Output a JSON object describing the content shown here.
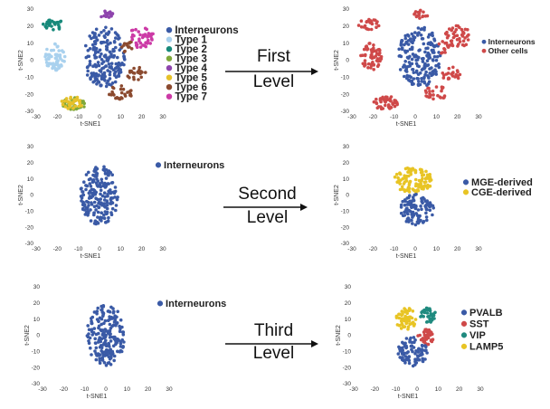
{
  "colors": {
    "interneurons": "#3a5aa6",
    "type1": "#a9d1ee",
    "type2": "#17897a",
    "type3": "#7fa83a",
    "type4": "#8e44ad",
    "type5": "#e6c12a",
    "type6": "#8b4a2f",
    "type7": "#cc3aa6",
    "other": "#cf4949",
    "mge": "#3a5aa6",
    "cge": "#e8c424",
    "pvalb": "#3a5aa6",
    "sst": "#cf4949",
    "vip": "#1f8a7f",
    "lamp5": "#e8c424"
  },
  "arrows": [
    {
      "line1": "First",
      "line2": "Level"
    },
    {
      "line1": "Second",
      "line2": "Level"
    },
    {
      "line1": "Third",
      "line2": "Level"
    }
  ],
  "chart_data": [
    {
      "type": "scatter",
      "xlabel": "t-SNE1",
      "ylabel": "t-SNE2",
      "xticks": [
        -30,
        -20,
        -10,
        0,
        10,
        20,
        30
      ],
      "yticks": [
        -30,
        -20,
        -10,
        0,
        10,
        20,
        30
      ],
      "legend": [
        {
          "label": "Interneurons",
          "color_key": "interneurons"
        },
        {
          "label": "Type 1",
          "color_key": "type1"
        },
        {
          "label": "Type 2",
          "color_key": "type2"
        },
        {
          "label": "Type 3",
          "color_key": "type3"
        },
        {
          "label": "Type 4",
          "color_key": "type4"
        },
        {
          "label": "Type 5",
          "color_key": "type5"
        },
        {
          "label": "Type 6",
          "color_key": "type6"
        },
        {
          "label": "Type 7",
          "color_key": "type7"
        }
      ],
      "clusters": [
        {
          "color_key": "interneurons",
          "cx": 2,
          "cy": 2,
          "rx": 10,
          "ry": 18,
          "n": 190
        },
        {
          "color_key": "type1",
          "cx": -21,
          "cy": 2,
          "rx": 5,
          "ry": 8,
          "n": 60
        },
        {
          "color_key": "type2",
          "cx": -22,
          "cy": 21,
          "rx": 5,
          "ry": 3.5,
          "n": 26
        },
        {
          "color_key": "type3",
          "cx": -12,
          "cy": -25,
          "rx": 6,
          "ry": 4,
          "n": 34
        },
        {
          "color_key": "type4",
          "cx": 3,
          "cy": 27,
          "rx": 3.5,
          "ry": 2.5,
          "n": 16
        },
        {
          "color_key": "type5",
          "cx": -13,
          "cy": -25,
          "rx": 5,
          "ry": 4,
          "n": 30
        },
        {
          "color_key": "type6",
          "cx": 10,
          "cy": -19,
          "rx": 6,
          "ry": 4,
          "n": 26
        },
        {
          "color_key": "type6",
          "cx": 17,
          "cy": -8,
          "rx": 5,
          "ry": 4,
          "n": 22
        },
        {
          "color_key": "type6",
          "cx": 13,
          "cy": 8,
          "rx": 3,
          "ry": 4,
          "n": 14
        },
        {
          "color_key": "type7",
          "cx": 20,
          "cy": 14,
          "rx": 6,
          "ry": 7,
          "n": 44
        }
      ]
    },
    {
      "type": "scatter",
      "xlabel": "t-SNE1",
      "ylabel": "t-SNE2",
      "xticks": [
        -30,
        -20,
        -10,
        0,
        10,
        20,
        30
      ],
      "yticks": [
        -30,
        -20,
        -10,
        0,
        10,
        20,
        30
      ],
      "legend": [
        {
          "label": "Interneurons",
          "color_key": "interneurons"
        },
        {
          "label": "Other cells",
          "color_key": "other"
        }
      ],
      "clusters": [
        {
          "color_key": "interneurons",
          "cx": 2,
          "cy": 2,
          "rx": 10,
          "ry": 18,
          "n": 190
        },
        {
          "color_key": "other",
          "cx": -21,
          "cy": 2,
          "rx": 5,
          "ry": 8,
          "n": 60
        },
        {
          "color_key": "other",
          "cx": -22,
          "cy": 21,
          "rx": 5,
          "ry": 3.5,
          "n": 26
        },
        {
          "color_key": "other",
          "cx": -14,
          "cy": -25,
          "rx": 6,
          "ry": 4,
          "n": 50
        },
        {
          "color_key": "other",
          "cx": 3,
          "cy": 27,
          "rx": 3.5,
          "ry": 2.5,
          "n": 16
        },
        {
          "color_key": "other",
          "cx": 10,
          "cy": -19,
          "rx": 6,
          "ry": 4,
          "n": 26
        },
        {
          "color_key": "other",
          "cx": 17,
          "cy": -8,
          "rx": 5,
          "ry": 4,
          "n": 22
        },
        {
          "color_key": "other",
          "cx": 13,
          "cy": 8,
          "rx": 3,
          "ry": 4,
          "n": 14
        },
        {
          "color_key": "other",
          "cx": 20,
          "cy": 14,
          "rx": 6,
          "ry": 7,
          "n": 44
        }
      ]
    },
    {
      "type": "scatter",
      "xlabel": "t-SNE1",
      "ylabel": "t-SNE2",
      "xticks": [
        -30,
        -20,
        -10,
        0,
        10,
        20,
        30
      ],
      "yticks": [
        -30,
        -20,
        -10,
        0,
        10,
        20,
        30
      ],
      "legend": [
        {
          "label": "Interneurons",
          "color_key": "interneurons"
        }
      ],
      "clusters": [
        {
          "color_key": "interneurons",
          "cx": 0,
          "cy": 0,
          "rx": 9,
          "ry": 19,
          "n": 200
        }
      ]
    },
    {
      "type": "scatter",
      "xlabel": "t-SNE1",
      "ylabel": "t-SNE2",
      "xticks": [
        -30,
        -20,
        -10,
        0,
        10,
        20,
        30
      ],
      "yticks": [
        -30,
        -20,
        -10,
        0,
        10,
        20,
        30
      ],
      "legend": [
        {
          "label": "MGE-derived",
          "color_key": "mge"
        },
        {
          "label": "CGE-derived",
          "color_key": "cge"
        }
      ],
      "clusters": [
        {
          "color_key": "cge",
          "cx": -1,
          "cy": 9,
          "rx": 9,
          "ry": 8,
          "n": 100
        },
        {
          "color_key": "mge",
          "cx": 1,
          "cy": -9,
          "rx": 8,
          "ry": 10,
          "n": 100
        }
      ]
    },
    {
      "type": "scatter",
      "xlabel": "t-SNE1",
      "ylabel": "t-SNE2",
      "xticks": [
        -30,
        -20,
        -10,
        0,
        10,
        20,
        30
      ],
      "yticks": [
        -30,
        -20,
        -10,
        0,
        10,
        20,
        30
      ],
      "legend": [
        {
          "label": "Interneurons",
          "color_key": "interneurons"
        }
      ],
      "clusters": [
        {
          "color_key": "interneurons",
          "cx": 0,
          "cy": 0,
          "rx": 9,
          "ry": 19,
          "n": 200
        }
      ]
    },
    {
      "type": "scatter",
      "xlabel": "t-SNE1",
      "ylabel": "t-SNE2",
      "xticks": [
        -30,
        -20,
        -10,
        0,
        10,
        20,
        30
      ],
      "yticks": [
        -30,
        -20,
        -10,
        0,
        10,
        20,
        30
      ],
      "legend": [
        {
          "label": "PVALB",
          "color_key": "pvalb"
        },
        {
          "label": "SST",
          "color_key": "sst"
        },
        {
          "label": "VIP",
          "color_key": "vip"
        },
        {
          "label": "LAMP5",
          "color_key": "lamp5"
        }
      ],
      "clusters": [
        {
          "color_key": "lamp5",
          "cx": -5,
          "cy": 10,
          "rx": 5,
          "ry": 7,
          "n": 55
        },
        {
          "color_key": "vip",
          "cx": 5,
          "cy": 12,
          "rx": 4,
          "ry": 5,
          "n": 35
        },
        {
          "color_key": "sst",
          "cx": 4,
          "cy": -1,
          "rx": 4,
          "ry": 5,
          "n": 40
        },
        {
          "color_key": "pvalb",
          "cx": -2,
          "cy": -10,
          "rx": 7,
          "ry": 9,
          "n": 90
        }
      ]
    }
  ]
}
